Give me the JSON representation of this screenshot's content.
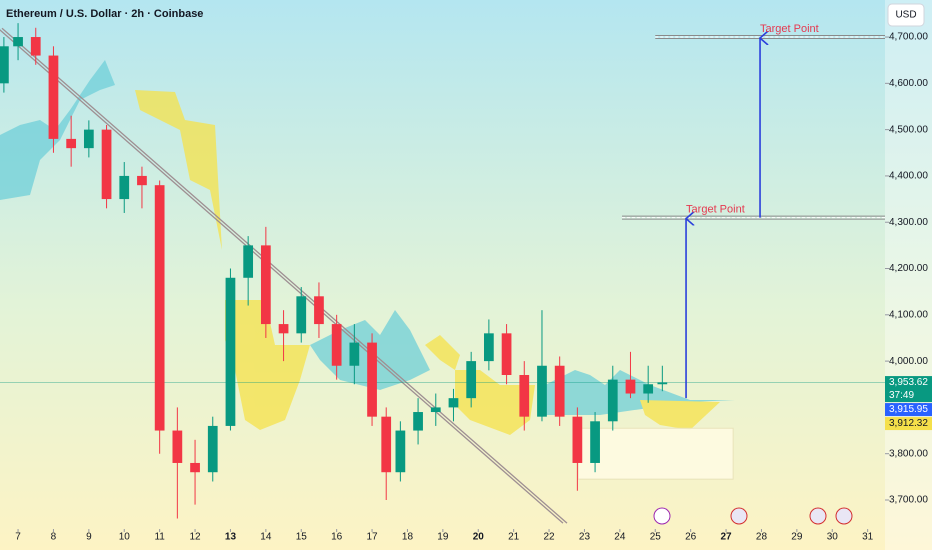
{
  "chart_data": {
    "type": "candlestick",
    "title": "Ethereum / U.S. Dollar · 2h · Coinbase",
    "currency": "USD",
    "x": [
      6.6,
      7.0,
      7.5,
      8.0,
      8.5,
      9.0,
      9.5,
      10.0,
      10.5,
      11.0,
      11.5,
      12.0,
      12.5,
      13.0,
      13.5,
      14.0,
      14.5,
      15.0,
      15.5,
      16.0,
      16.5,
      17.0,
      17.4,
      17.8,
      18.3,
      18.8,
      19.3,
      19.8,
      20.3,
      20.8,
      21.3,
      21.8,
      22.3,
      22.8,
      23.3,
      23.8,
      24.3,
      24.8,
      25.2
    ],
    "open": [
      4600,
      4680,
      4700,
      4660,
      4480,
      4460,
      4500,
      4350,
      4400,
      4380,
      3850,
      3780,
      3760,
      3860,
      4180,
      4250,
      4080,
      4060,
      4140,
      4080,
      3990,
      4040,
      3880,
      3760,
      3850,
      3890,
      3900,
      3920,
      4000,
      4060,
      3970,
      3880,
      3990,
      3880,
      3780,
      3870,
      3960,
      3930,
      3950
    ],
    "high": [
      4700,
      4730,
      4720,
      4680,
      4530,
      4520,
      4510,
      4430,
      4420,
      4390,
      3900,
      3830,
      3880,
      4200,
      4270,
      4290,
      4110,
      4160,
      4170,
      4100,
      4080,
      4060,
      3900,
      3870,
      3920,
      3930,
      3940,
      4020,
      4090,
      4080,
      4000,
      4110,
      4010,
      3900,
      3890,
      3990,
      4020,
      3990,
      3990
    ],
    "low": [
      4580,
      4650,
      4640,
      4450,
      4420,
      4440,
      4330,
      4320,
      4330,
      3800,
      3660,
      3690,
      3740,
      3850,
      4120,
      4050,
      4000,
      4040,
      4050,
      3960,
      3950,
      3860,
      3700,
      3740,
      3820,
      3860,
      3870,
      3900,
      3980,
      3950,
      3850,
      3870,
      3860,
      3720,
      3760,
      3850,
      3920,
      3910,
      3935
    ],
    "close": [
      4680,
      4700,
      4660,
      4480,
      4460,
      4500,
      4350,
      4400,
      4380,
      3850,
      3780,
      3760,
      3860,
      4180,
      4250,
      4080,
      4060,
      4140,
      4080,
      3990,
      4040,
      3880,
      3760,
      3850,
      3890,
      3900,
      3920,
      4000,
      4060,
      3970,
      3880,
      3990,
      3880,
      3780,
      3870,
      3960,
      3930,
      3950,
      3954
    ],
    "up_color": "#089981",
    "down_color": "#f23645",
    "xlim": [
      6.49,
      31.49
    ],
    "ylim": [
      3646,
      4780
    ],
    "xticks": [
      7,
      8,
      9,
      10,
      11,
      12,
      13,
      14,
      15,
      16,
      17,
      18,
      19,
      20,
      21,
      22,
      23,
      24,
      25,
      26,
      27,
      28,
      29,
      30,
      31
    ],
    "bold_xticks": [
      13,
      20,
      27
    ],
    "yticks": [
      {
        "value": 3700,
        "label": "3,700.00"
      },
      {
        "value": 3800,
        "label": "3,800.00"
      },
      {
        "value": 3900,
        "label": "3,900.00"
      },
      {
        "value": 4000,
        "label": "4,000.00"
      },
      {
        "value": 4100,
        "label": "4,100.00"
      },
      {
        "value": 4200,
        "label": "4,200.00"
      },
      {
        "value": 4300,
        "label": "4,300.00"
      },
      {
        "value": 4400,
        "label": "4,400.00"
      },
      {
        "value": 4500,
        "label": "4,500.00"
      },
      {
        "value": 4600,
        "label": "4,600.00"
      },
      {
        "value": 4700,
        "label": "4,700.00"
      }
    ],
    "price_labels": [
      {
        "value": 3953.62,
        "label": "3,953.62",
        "color": "#089981"
      },
      {
        "value": 3915.95,
        "label": "3,915.95",
        "color": "#2962ff"
      },
      {
        "value": 3912.32,
        "label": "3,912.32",
        "color": "#f5e04a"
      }
    ],
    "countdown": "37:49",
    "trendline": {
      "x": [
        6.49,
        22.45
      ],
      "y": [
        4719,
        3650
      ]
    },
    "zone": {
      "x": [
        22.82,
        27.2
      ],
      "y": [
        3745,
        3855
      ]
    },
    "targets": [
      {
        "label": "Target Point",
        "level": 4310,
        "from_x": 24.06,
        "arrow_x": 25.87,
        "arrow_from": 3920
      },
      {
        "label": "Target Point",
        "level": 4700,
        "from_x": 25.0,
        "arrow_x": 27.96,
        "arrow_from": 4310
      }
    ]
  }
}
